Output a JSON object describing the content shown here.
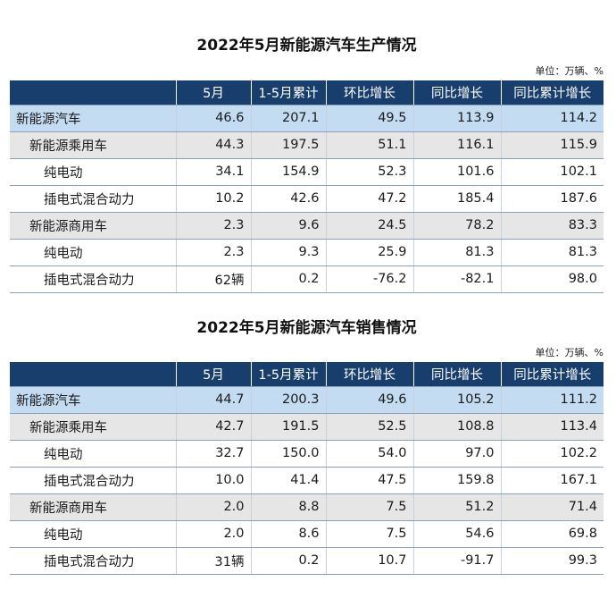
{
  "production": {
    "title": "2022年5月新能源汽车生产情况",
    "unit": "单位：万辆、%",
    "headers": [
      "",
      "5月",
      "1-5月累计",
      "环比增长",
      "同比增长",
      "同比累计增长"
    ],
    "rows": [
      {
        "label": "新能源汽车",
        "level": 0,
        "values": [
          "46.6",
          "207.1",
          "49.5",
          "113.9",
          "114.2"
        ]
      },
      {
        "label": "新能源乘用车",
        "level": 1,
        "values": [
          "44.3",
          "197.5",
          "51.1",
          "116.1",
          "115.9"
        ]
      },
      {
        "label": "纯电动",
        "level": 2,
        "values": [
          "34.1",
          "154.9",
          "52.3",
          "101.6",
          "102.1"
        ]
      },
      {
        "label": "插电式混合动力",
        "level": 2,
        "values": [
          "10.2",
          "42.6",
          "47.2",
          "185.4",
          "187.6"
        ]
      },
      {
        "label": "新能源商用车",
        "level": 1,
        "values": [
          "2.3",
          "9.6",
          "24.5",
          "78.2",
          "83.3"
        ]
      },
      {
        "label": "纯电动",
        "level": 2,
        "values": [
          "2.3",
          "9.3",
          "25.9",
          "81.3",
          "81.3"
        ]
      },
      {
        "label": "插电式混合动力",
        "level": 2,
        "values": [
          "62辆",
          "0.2",
          "-76.2",
          "-82.1",
          "98.0"
        ]
      }
    ]
  },
  "sales": {
    "title": "2022年5月新能源汽车销售情况",
    "unit": "单位：万辆、%",
    "headers": [
      "",
      "5月",
      "1-5月累计",
      "环比增长",
      "同比增长",
      "同比累计增长"
    ],
    "rows": [
      {
        "label": "新能源汽车",
        "level": 0,
        "values": [
          "44.7",
          "200.3",
          "49.6",
          "105.2",
          "111.2"
        ]
      },
      {
        "label": "新能源乘用车",
        "level": 1,
        "values": [
          "42.7",
          "191.5",
          "52.5",
          "108.8",
          "113.4"
        ]
      },
      {
        "label": "纯电动",
        "level": 2,
        "values": [
          "32.7",
          "150.0",
          "54.0",
          "97.0",
          "102.2"
        ]
      },
      {
        "label": "插电式混合动力",
        "level": 2,
        "values": [
          "10.0",
          "41.4",
          "47.5",
          "159.8",
          "167.1"
        ]
      },
      {
        "label": "新能源商用车",
        "level": 1,
        "values": [
          "2.0",
          "8.8",
          "7.5",
          "51.2",
          "71.4"
        ]
      },
      {
        "label": "纯电动",
        "level": 2,
        "values": [
          "2.0",
          "8.6",
          "7.5",
          "54.6",
          "69.8"
        ]
      },
      {
        "label": "插电式混合动力",
        "level": 2,
        "values": [
          "31辆",
          "0.2",
          "10.7",
          "-91.7",
          "99.3"
        ]
      }
    ]
  }
}
